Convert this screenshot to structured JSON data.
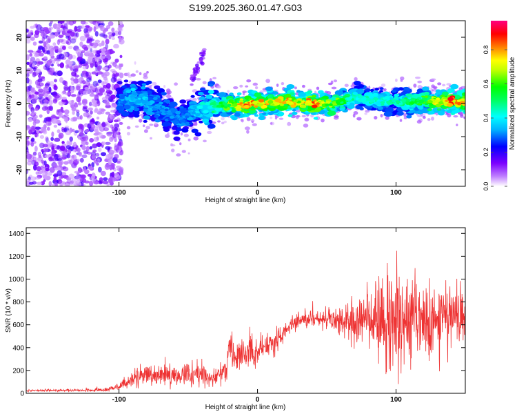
{
  "title": "S199.2025.360.01.47.G03",
  "chart_data": [
    {
      "type": "heatmap",
      "title": "S199.2025.360.01.47.G03",
      "xlabel": "Height of straight line (km)",
      "ylabel": "Frequency (Hz)",
      "xlim": [
        -167,
        150
      ],
      "ylim": [
        -25,
        25
      ],
      "x_ticks": [
        -100,
        0,
        100
      ],
      "x_tick_labels": [
        "-100",
        "0",
        "100"
      ],
      "y_ticks": [
        -20,
        -10,
        0,
        10,
        20
      ],
      "y_tick_labels": [
        "-20",
        "-10",
        "0",
        "10",
        "20"
      ],
      "noise_region_x": [
        -167,
        -98
      ],
      "signal_region_x": [
        -100,
        150
      ],
      "ridge": {
        "description": "dominant frequency track",
        "x": [
          -100,
          -90,
          -80,
          -70,
          -60,
          -55,
          -50,
          -40,
          -30,
          -20,
          -10,
          0,
          10,
          20,
          30,
          40,
          50,
          60,
          70,
          80,
          90,
          100,
          110,
          120,
          130,
          140,
          150
        ],
        "freq": [
          1,
          1.5,
          0.5,
          -1.5,
          -4,
          -5,
          -3,
          -1.5,
          -0.5,
          -0.5,
          -0.3,
          0,
          0.3,
          0.5,
          0.2,
          0,
          0,
          0.5,
          2,
          1.5,
          0.8,
          0.5,
          0.5,
          1,
          0.5,
          0.5,
          0.5
        ],
        "amplitude": [
          0.3,
          0.35,
          0.35,
          0.3,
          0.3,
          0.3,
          0.3,
          0.4,
          0.5,
          0.65,
          0.85,
          0.85,
          0.75,
          0.85,
          0.75,
          0.9,
          0.7,
          0.6,
          0.45,
          0.45,
          0.45,
          0.45,
          0.55,
          0.6,
          0.75,
          0.9,
          0.75
        ]
      },
      "side_feature": {
        "x": [
          -48,
          -38
        ],
        "freq": [
          6,
          16
        ]
      },
      "colorbar": {
        "label": "Normalized spectral amplitude",
        "range": [
          0.0,
          0.97
        ],
        "ticks": [
          0.0,
          0.2,
          0.4,
          0.6,
          0.8
        ],
        "tick_labels": [
          "0.0",
          "0.2",
          "0.4",
          "0.6",
          "0.8"
        ],
        "colors": [
          "#ffffff",
          "#7b00ff",
          "#0000ff",
          "#00ffff",
          "#00ff00",
          "#ffff00",
          "#ff8000",
          "#ff0000",
          "#ff0080"
        ]
      }
    },
    {
      "type": "line",
      "xlabel": "Height of straight line (km)",
      "ylabel": "SNR (10 * v/v)",
      "xlim": [
        -167,
        150
      ],
      "ylim": [
        0,
        1450
      ],
      "x_ticks": [
        -100,
        0,
        100
      ],
      "x_tick_labels": [
        "-100",
        "0",
        "100"
      ],
      "y_ticks": [
        0,
        200,
        400,
        600,
        800,
        1000,
        1200,
        1400
      ],
      "y_tick_labels": [
        "0",
        "200",
        "400",
        "600",
        "800",
        "1000",
        "1200",
        "1400"
      ],
      "color": "#ee3333",
      "series": [
        {
          "name": "SNR",
          "x": [
            -167,
            -150,
            -130,
            -110,
            -100,
            -95,
            -90,
            -85,
            -80,
            -70,
            -60,
            -50,
            -40,
            -30,
            -25,
            -21,
            -20,
            -19,
            -15,
            -10,
            -5,
            0,
            5,
            10,
            15,
            20,
            25,
            30,
            40,
            50,
            60,
            70,
            80,
            90,
            100,
            110,
            120,
            130,
            140,
            150
          ],
          "mean": [
            25,
            25,
            25,
            30,
            60,
            90,
            120,
            150,
            160,
            165,
            165,
            160,
            160,
            150,
            160,
            220,
            300,
            310,
            330,
            340,
            360,
            380,
            400,
            420,
            470,
            540,
            600,
            640,
            650,
            650,
            640,
            640,
            640,
            630,
            630,
            620,
            620,
            630,
            630,
            630
          ],
          "spread": [
            10,
            10,
            10,
            15,
            30,
            50,
            70,
            80,
            80,
            80,
            80,
            80,
            80,
            70,
            80,
            120,
            150,
            150,
            100,
            100,
            110,
            110,
            110,
            100,
            80,
            60,
            60,
            60,
            60,
            80,
            120,
            200,
            300,
            330,
            350,
            360,
            330,
            280,
            250,
            220
          ]
        }
      ]
    }
  ]
}
